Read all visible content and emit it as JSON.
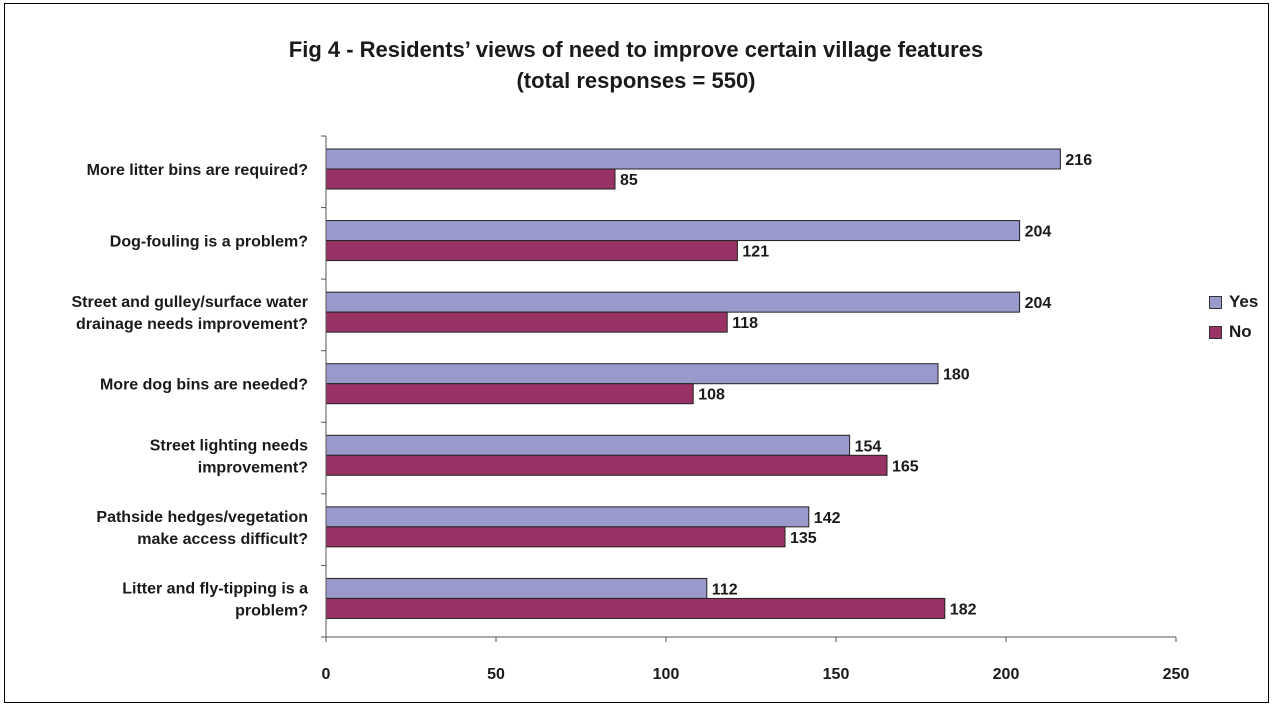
{
  "chart_data": {
    "type": "bar",
    "orientation": "horizontal",
    "title_lines": [
      "Fig 4 - Residents’ views of need to improve certain village features",
      "(total responses = 550)"
    ],
    "categories": [
      [
        "More litter bins are required?"
      ],
      [
        "Dog-fouling is a problem?"
      ],
      [
        "Street and gulley/surface water",
        "drainage needs improvement?"
      ],
      [
        "More dog bins are needed?"
      ],
      [
        "Street lighting needs",
        "improvement?"
      ],
      [
        "Pathside hedges/vegetation",
        "make access difficult?"
      ],
      [
        "Litter and fly-tipping is a",
        "problem?"
      ]
    ],
    "series": [
      {
        "name": "Yes",
        "color": "#9999CC",
        "values": [
          216,
          204,
          204,
          180,
          154,
          142,
          112
        ]
      },
      {
        "name": "No",
        "color": "#993366",
        "values": [
          85,
          121,
          118,
          108,
          165,
          135,
          182
        ]
      }
    ],
    "xlim": [
      0,
      250
    ],
    "xticks": [
      0,
      50,
      100,
      150,
      200,
      250
    ],
    "grid": false,
    "legend_position": "right"
  }
}
